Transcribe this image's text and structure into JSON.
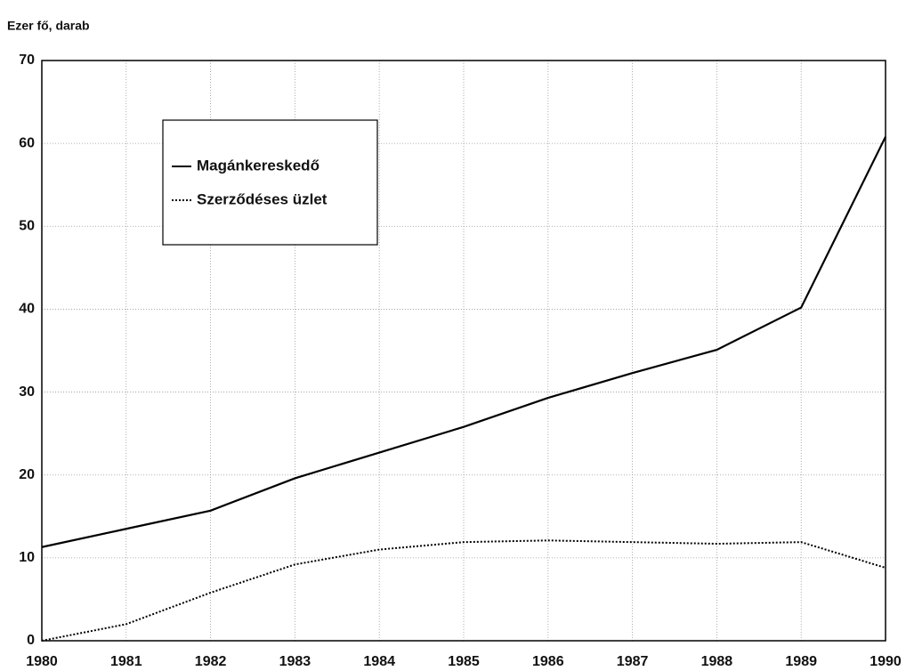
{
  "chart_data": {
    "type": "line",
    "ylabel": "Ezer fő, darab",
    "x": [
      1980,
      1981,
      1982,
      1983,
      1984,
      1985,
      1986,
      1987,
      1988,
      1989,
      1990
    ],
    "series": [
      {
        "name": "Magánkereskedő",
        "color": "#000000",
        "dash": "solid",
        "values": [
          11.3,
          13.5,
          15.7,
          19.6,
          22.7,
          25.8,
          29.3,
          32.3,
          35.1,
          40.2,
          60.8
        ]
      },
      {
        "name": "Szerződéses üzlet",
        "color": "#000000",
        "dash": "dotted",
        "values": [
          0,
          2,
          5.8,
          9.2,
          11,
          11.9,
          12.1,
          11.9,
          11.7,
          11.9,
          8.8
        ]
      }
    ],
    "xlim": [
      1980,
      1990
    ],
    "xticks": [
      1980,
      1981,
      1982,
      1983,
      1984,
      1985,
      1986,
      1987,
      1988,
      1989,
      1990
    ],
    "ylim": [
      0,
      70
    ],
    "yticks": [
      0,
      10,
      20,
      30,
      40,
      50,
      60,
      70
    ],
    "grid": true,
    "legend": "upper left"
  }
}
